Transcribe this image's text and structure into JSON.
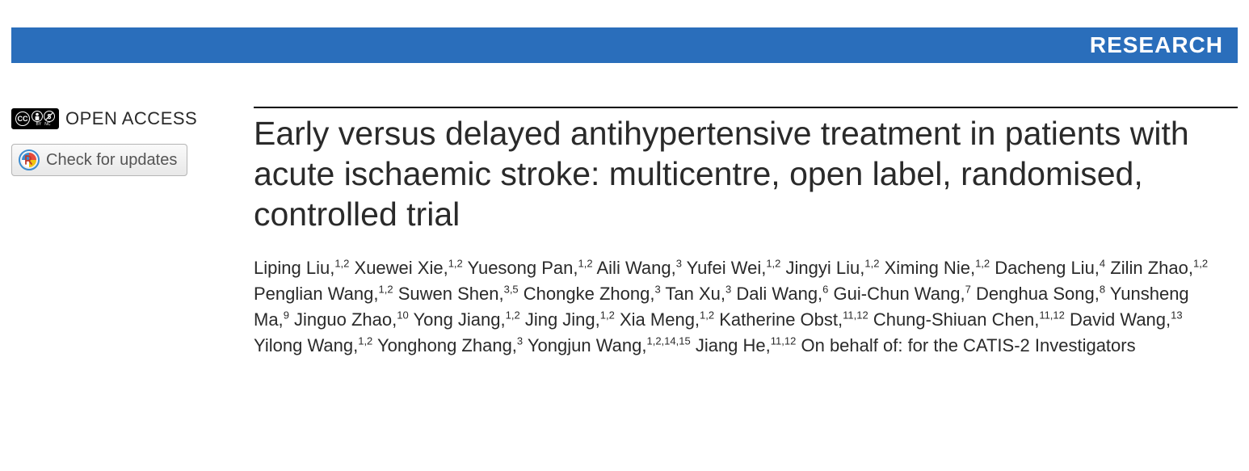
{
  "header": {
    "section_label": "RESEARCH",
    "bar_color": "#2a6ebb",
    "text_color": "#ffffff"
  },
  "left": {
    "open_access_label": "OPEN ACCESS",
    "cc_text": "CC",
    "updates_button_label": "Check for updates"
  },
  "article": {
    "title": "Early versus delayed antihypertensive treatment in patients with acute ischaemic stroke: multicentre, open label, randomised, controlled trial",
    "authors": [
      {
        "name": "Liping Liu",
        "affil": "1,2"
      },
      {
        "name": "Xuewei Xie",
        "affil": "1,2"
      },
      {
        "name": "Yuesong Pan",
        "affil": "1,2"
      },
      {
        "name": "Aili Wang",
        "affil": "3"
      },
      {
        "name": "Yufei Wei",
        "affil": "1,2"
      },
      {
        "name": "Jingyi Liu",
        "affil": "1,2"
      },
      {
        "name": "Ximing Nie",
        "affil": "1,2"
      },
      {
        "name": "Dacheng Liu",
        "affil": "4"
      },
      {
        "name": "Zilin Zhao",
        "affil": "1,2"
      },
      {
        "name": "Penglian Wang",
        "affil": "1,2"
      },
      {
        "name": "Suwen Shen",
        "affil": "3,5"
      },
      {
        "name": "Chongke Zhong",
        "affil": "3"
      },
      {
        "name": "Tan Xu",
        "affil": "3"
      },
      {
        "name": "Dali Wang",
        "affil": "6"
      },
      {
        "name": "Gui-Chun Wang",
        "affil": "7"
      },
      {
        "name": "Denghua Song",
        "affil": "8"
      },
      {
        "name": "Yunsheng Ma",
        "affil": "9"
      },
      {
        "name": "Jinguo Zhao",
        "affil": "10"
      },
      {
        "name": "Yong Jiang",
        "affil": "1,2"
      },
      {
        "name": "Jing Jing",
        "affil": "1,2"
      },
      {
        "name": "Xia Meng",
        "affil": "1,2"
      },
      {
        "name": "Katherine Obst",
        "affil": "11,12"
      },
      {
        "name": "Chung-Shiuan Chen",
        "affil": "11,12"
      },
      {
        "name": "David Wang",
        "affil": "13"
      },
      {
        "name": "Yilong Wang",
        "affil": "1,2"
      },
      {
        "name": "Yonghong Zhang",
        "affil": "3"
      },
      {
        "name": "Yongjun Wang",
        "affil": "1,2,14,15"
      },
      {
        "name": "Jiang He",
        "affil": "11,12"
      }
    ],
    "on_behalf": "On behalf of: for the CATIS-2 Investigators"
  },
  "style": {
    "title_fontsize": 41,
    "author_fontsize": 22,
    "rule_color": "#000000",
    "body_text_color": "#2a2a2a"
  }
}
